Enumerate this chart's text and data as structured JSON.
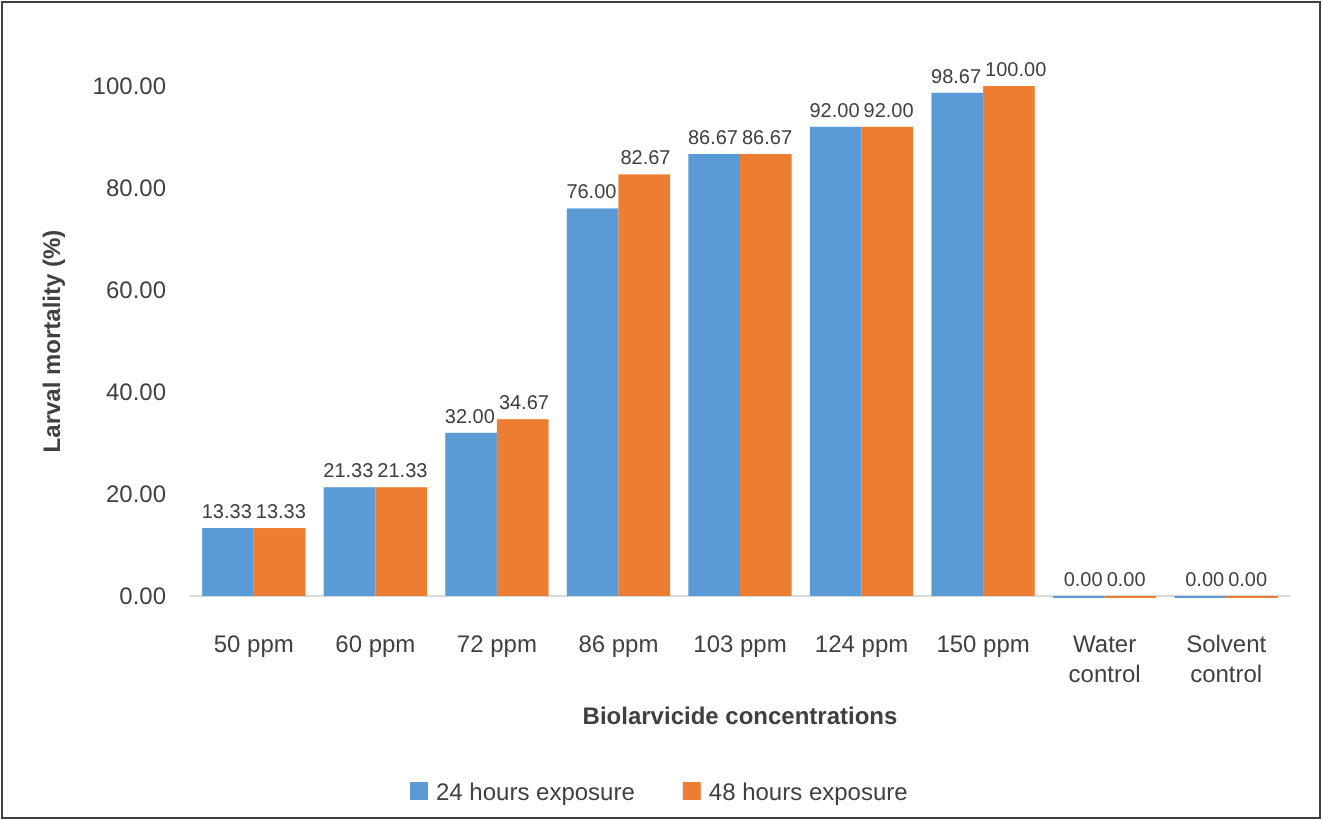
{
  "chart_data": {
    "type": "bar",
    "xlabel": "Biolarvicide concentrations",
    "ylabel": "Larval mortality (%)",
    "categories": [
      "50 ppm",
      "60 ppm",
      "72 ppm",
      "86 ppm",
      "103 ppm",
      "124 ppm",
      "150 ppm",
      "Water control",
      "Solvent control"
    ],
    "series": [
      {
        "name": "24 hours exposure",
        "color": "#5b9bd5",
        "values": [
          13.33,
          21.33,
          32.0,
          76.0,
          86.67,
          92.0,
          98.67,
          0,
          0
        ],
        "value_labels": [
          "13.33",
          "21.33",
          "32.00",
          "76.00",
          "86.67",
          "92.00",
          "98.67",
          "0.00",
          "0.00"
        ]
      },
      {
        "name": "48 hours exposure",
        "color": "#ed7d31",
        "values": [
          13.33,
          21.33,
          34.67,
          82.67,
          86.67,
          92.0,
          100.0,
          0,
          0
        ],
        "value_labels": [
          "13.33",
          "21.33",
          "34.67",
          "82.67",
          "86.67",
          "92.00",
          "100.00",
          "0.00",
          "0.00"
        ]
      }
    ],
    "ylim": [
      0,
      100
    ],
    "yticks": [
      {
        "value": 0,
        "label": "0.00"
      },
      {
        "value": 20,
        "label": "20.00"
      },
      {
        "value": 40,
        "label": "40.00"
      },
      {
        "value": 60,
        "label": "60.00"
      },
      {
        "value": 80,
        "label": "80.00"
      },
      {
        "value": 100,
        "label": "100.00"
      }
    ],
    "grid": false,
    "legend": "bottom"
  }
}
